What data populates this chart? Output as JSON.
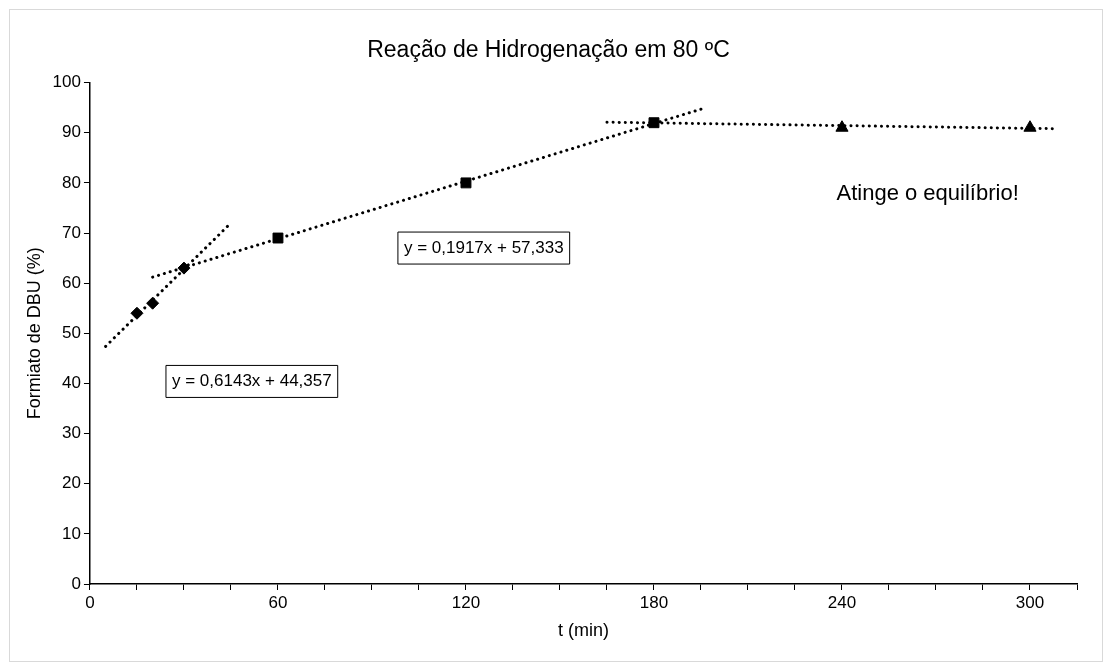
{
  "chart_data": {
    "type": "scatter",
    "title": "Reação de Hidrogenação em 80 ºC",
    "xlabel": "t (min)",
    "ylabel": "Formiato de DBU (%)",
    "series": [
      {
        "color": "#000000",
        "marker": "diamond",
        "x": [
          15,
          20,
          30
        ],
        "values": [
          54,
          56,
          63
        ]
      },
      {
        "color": "#000000",
        "marker": "square",
        "x": [
          60,
          120,
          180
        ],
        "values": [
          69,
          80,
          92
        ]
      },
      {
        "color": "#000000",
        "marker": "triangle",
        "x": [
          240,
          300
        ],
        "values": [
          91,
          91
        ]
      },
      {
        "type": "line",
        "color": "#000000",
        "marker": "none",
        "line_style": "dotted",
        "x": [
          5,
          44
        ],
        "values": [
          47.4,
          71.4
        ]
      },
      {
        "type": "line",
        "color": "#000000",
        "marker": "none",
        "line_style": "dotted",
        "x": [
          20,
          195
        ],
        "values": [
          61.2,
          94.7
        ]
      },
      {
        "type": "line",
        "color": "#000000",
        "marker": "none",
        "line_style": "dotted",
        "x": [
          165,
          308
        ],
        "values": [
          92.1,
          90.8
        ]
      }
    ],
    "annotations": [
      "y = 0,6143x + 44,357",
      "y = 0,1917x + 57,333",
      "Atinge o equilíbrio!"
    ],
    "xlim": [
      0,
      315
    ],
    "xticks": [
      0,
      {
        "value": 15,
        "label": null
      },
      {
        "value": 30,
        "label": null
      },
      {
        "value": 45,
        "label": null
      },
      60,
      {
        "value": 75,
        "label": null
      },
      {
        "value": 90,
        "label": null
      },
      {
        "value": 105,
        "label": null
      },
      120,
      {
        "value": 135,
        "label": null
      },
      {
        "value": 150,
        "label": null
      },
      {
        "value": 165,
        "label": null
      },
      180,
      {
        "value": 195,
        "label": null
      },
      {
        "value": 210,
        "label": null
      },
      {
        "value": 225,
        "label": null
      },
      240,
      {
        "value": 255,
        "label": null
      },
      {
        "value": 270,
        "label": null
      },
      {
        "value": 285,
        "label": null
      },
      300,
      {
        "value": 315,
        "label": null
      }
    ],
    "ylim": [
      0,
      100
    ],
    "yticks": [
      0,
      10,
      20,
      30,
      40,
      50,
      60,
      70,
      80,
      90,
      100
    ],
    "grid": false,
    "legend": false
  }
}
